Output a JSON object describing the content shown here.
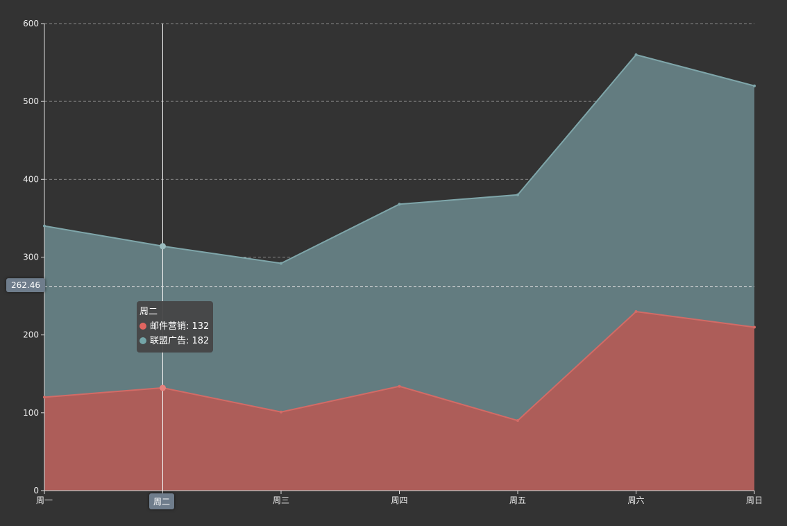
{
  "chart_data": {
    "type": "area",
    "stacked": true,
    "categories": [
      "周一",
      "周二",
      "周三",
      "周四",
      "周五",
      "周六",
      "周日"
    ],
    "series": [
      {
        "name": "邮件营销",
        "values": [
          120,
          132,
          101,
          134,
          90,
          230,
          210
        ],
        "color": "#c23531"
      },
      {
        "name": "联盟广告",
        "values": [
          220,
          182,
          191,
          234,
          290,
          330,
          310
        ],
        "color": "#61a0a8"
      }
    ],
    "ylim": [
      0,
      600
    ],
    "yticks": [
      0,
      100,
      200,
      300,
      400,
      500,
      600
    ],
    "grid": true,
    "legend": "none",
    "background": "#333333"
  },
  "tooltip": {
    "title": "周二",
    "rows": [
      {
        "label": "邮件营销: 132",
        "color": "#e06560"
      },
      {
        "label": "联盟广告: 182",
        "color": "#74a5a8"
      }
    ]
  },
  "axis_pointer": {
    "y_value": "262.46",
    "x_value": "周二",
    "category_index": 1,
    "y_numeric": 262.46
  }
}
